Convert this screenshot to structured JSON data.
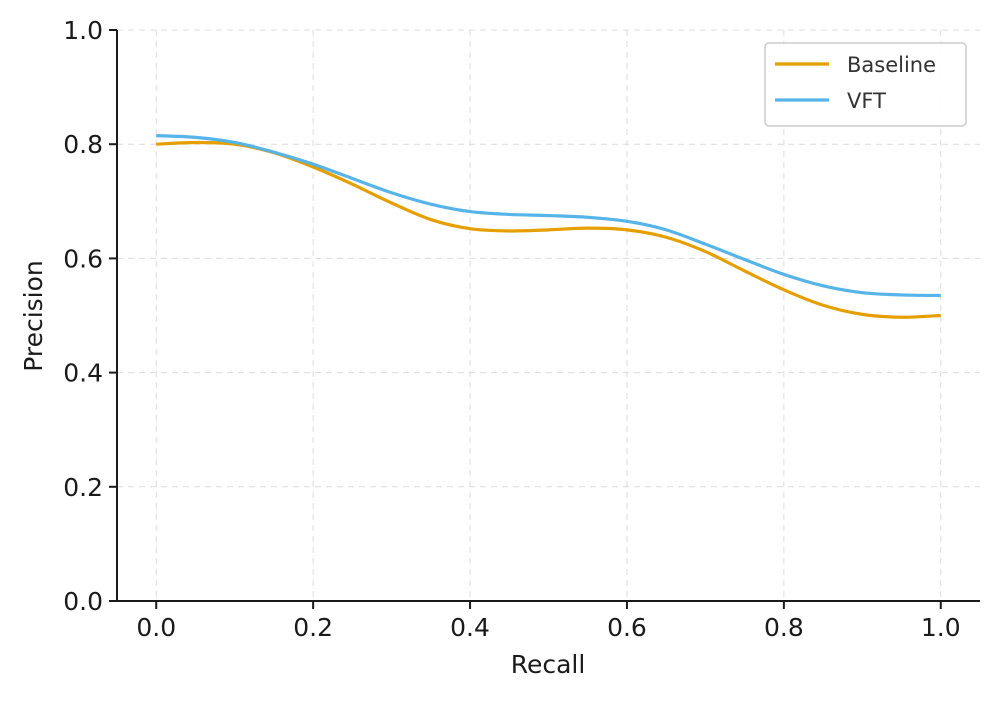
{
  "chart_data": {
    "type": "line",
    "title": "",
    "xlabel": "Recall",
    "ylabel": "Precision",
    "xlim": [
      -0.05,
      1.05
    ],
    "ylim": [
      0.0,
      1.0
    ],
    "xticks": [
      "0.0",
      "0.2",
      "0.4",
      "0.6",
      "0.8",
      "1.0"
    ],
    "yticks": [
      "0.0",
      "0.2",
      "0.4",
      "0.6",
      "0.8",
      "1.0"
    ],
    "grid": true,
    "legend_position": "top-right",
    "series": [
      {
        "name": "Baseline",
        "color": "#E69F00",
        "x": [
          0.0,
          0.05,
          0.1,
          0.15,
          0.2,
          0.25,
          0.3,
          0.35,
          0.4,
          0.45,
          0.5,
          0.55,
          0.6,
          0.65,
          0.7,
          0.75,
          0.8,
          0.85,
          0.9,
          0.95,
          1.0
        ],
        "y": [
          0.8,
          0.803,
          0.8,
          0.785,
          0.76,
          0.73,
          0.697,
          0.668,
          0.652,
          0.648,
          0.65,
          0.653,
          0.65,
          0.637,
          0.612,
          0.578,
          0.545,
          0.518,
          0.502,
          0.497,
          0.5
        ]
      },
      {
        "name": "VFT",
        "color": "#56B4E9",
        "x": [
          0.0,
          0.05,
          0.1,
          0.15,
          0.2,
          0.25,
          0.3,
          0.35,
          0.4,
          0.45,
          0.5,
          0.55,
          0.6,
          0.65,
          0.7,
          0.75,
          0.8,
          0.85,
          0.9,
          0.95,
          1.0
        ],
        "y": [
          0.815,
          0.812,
          0.803,
          0.786,
          0.765,
          0.74,
          0.715,
          0.695,
          0.682,
          0.677,
          0.675,
          0.672,
          0.665,
          0.65,
          0.625,
          0.598,
          0.572,
          0.552,
          0.54,
          0.536,
          0.535
        ]
      }
    ]
  }
}
